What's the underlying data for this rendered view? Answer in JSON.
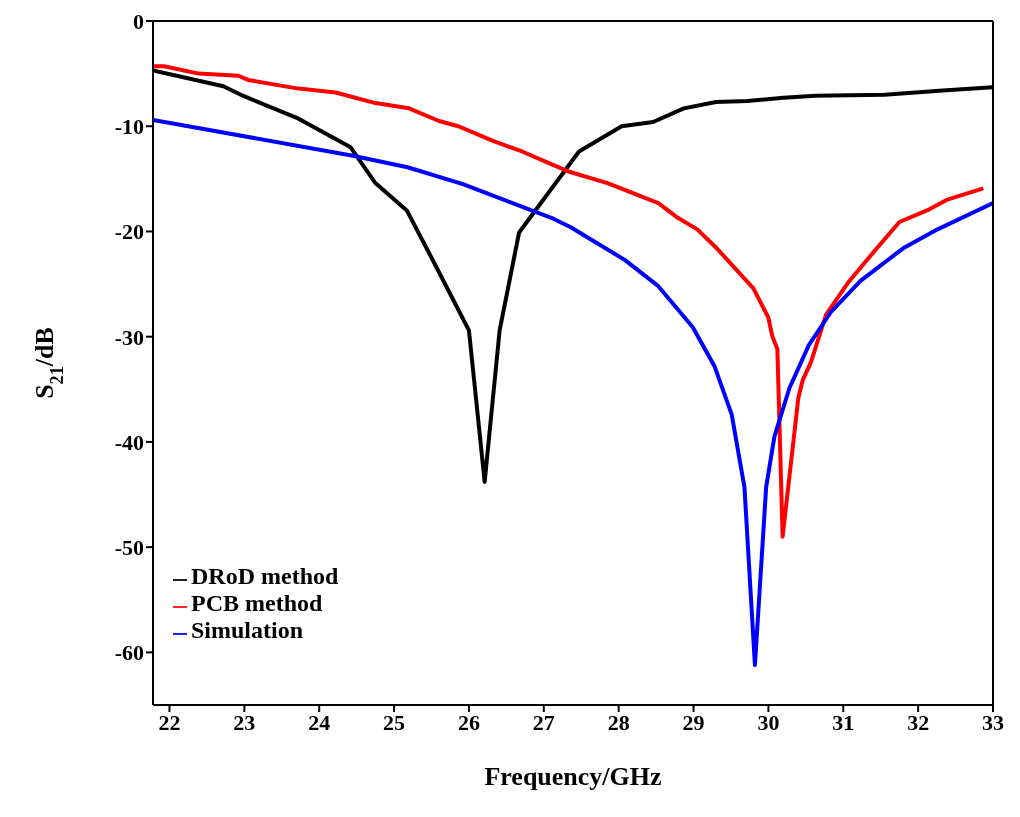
{
  "chart_data": {
    "type": "line",
    "xlabel": "Frequency/GHz",
    "ylabel": "S$_{21}$/dB",
    "xlim": [
      21.78,
      33
    ],
    "ylim": [
      -65,
      0
    ],
    "xticks": [
      22,
      23,
      24,
      25,
      26,
      27,
      28,
      29,
      30,
      31,
      32,
      33
    ],
    "yticks": [
      -60,
      -50,
      -40,
      -30,
      -20,
      -10,
      0
    ],
    "legend": "bottom left",
    "marker": "none",
    "line_style": "solid",
    "series": [
      {
        "name": "DRoD method",
        "color": "#000000",
        "x": [
          21.78,
          22.72,
          22.98,
          23.7,
          24.42,
          24.75,
          25.17,
          25.53,
          26.0,
          26.21,
          26.41,
          26.67,
          27.47,
          28.04,
          28.46,
          28.87,
          29.3,
          29.72,
          30.2,
          30.63,
          31.55,
          32.33,
          32.99
        ],
        "values": [
          -4.7,
          -6.2,
          -7.1,
          -9.2,
          -12.0,
          -15.4,
          -18.0,
          -22.9,
          -29.4,
          -43.8,
          -29.4,
          -20.1,
          -12.4,
          -10.0,
          -9.6,
          -8.3,
          -7.7,
          -7.6,
          -7.3,
          -7.1,
          -7.0,
          -6.6,
          -6.3
        ]
      },
      {
        "name": "PCB method",
        "color": "#ff0000",
        "x": [
          21.78,
          21.93,
          22.39,
          22.92,
          23.05,
          23.7,
          24.22,
          24.75,
          25.2,
          25.6,
          25.86,
          26.32,
          26.71,
          27.1,
          27.33,
          27.85,
          28.53,
          28.79,
          29.05,
          29.31,
          29.8,
          30.0,
          30.05,
          30.12,
          30.19,
          30.4,
          30.46,
          30.57,
          30.77,
          31.06,
          31.4,
          31.75,
          32.15,
          32.38,
          32.87
        ],
        "values": [
          -4.3,
          -4.3,
          -5.0,
          -5.2,
          -5.6,
          -6.4,
          -6.8,
          -7.8,
          -8.3,
          -9.5,
          -10.0,
          -11.4,
          -12.4,
          -13.6,
          -14.3,
          -15.4,
          -17.3,
          -18.7,
          -19.8,
          -21.6,
          -25.4,
          -28.2,
          -29.9,
          -31.2,
          -49.0,
          -35.8,
          -34.1,
          -32.4,
          -27.9,
          -24.9,
          -22.0,
          -19.1,
          -17.9,
          -17.0,
          -15.9
        ]
      },
      {
        "name": "Simulation",
        "color": "#0000ff",
        "x": [
          21.78,
          24.45,
          25.18,
          25.92,
          27.1,
          27.36,
          28.08,
          28.53,
          28.99,
          29.28,
          29.51,
          29.68,
          29.82,
          29.97,
          30.08,
          30.28,
          30.54,
          30.83,
          31.23,
          31.8,
          32.26,
          33.0
        ],
        "values": [
          -9.4,
          -12.8,
          -13.9,
          -15.5,
          -18.7,
          -19.6,
          -22.7,
          -25.2,
          -29.1,
          -32.8,
          -37.4,
          -44.3,
          -61.2,
          -44.3,
          -39.5,
          -34.9,
          -30.8,
          -27.7,
          -24.7,
          -21.6,
          -19.8,
          -17.3
        ]
      }
    ]
  }
}
